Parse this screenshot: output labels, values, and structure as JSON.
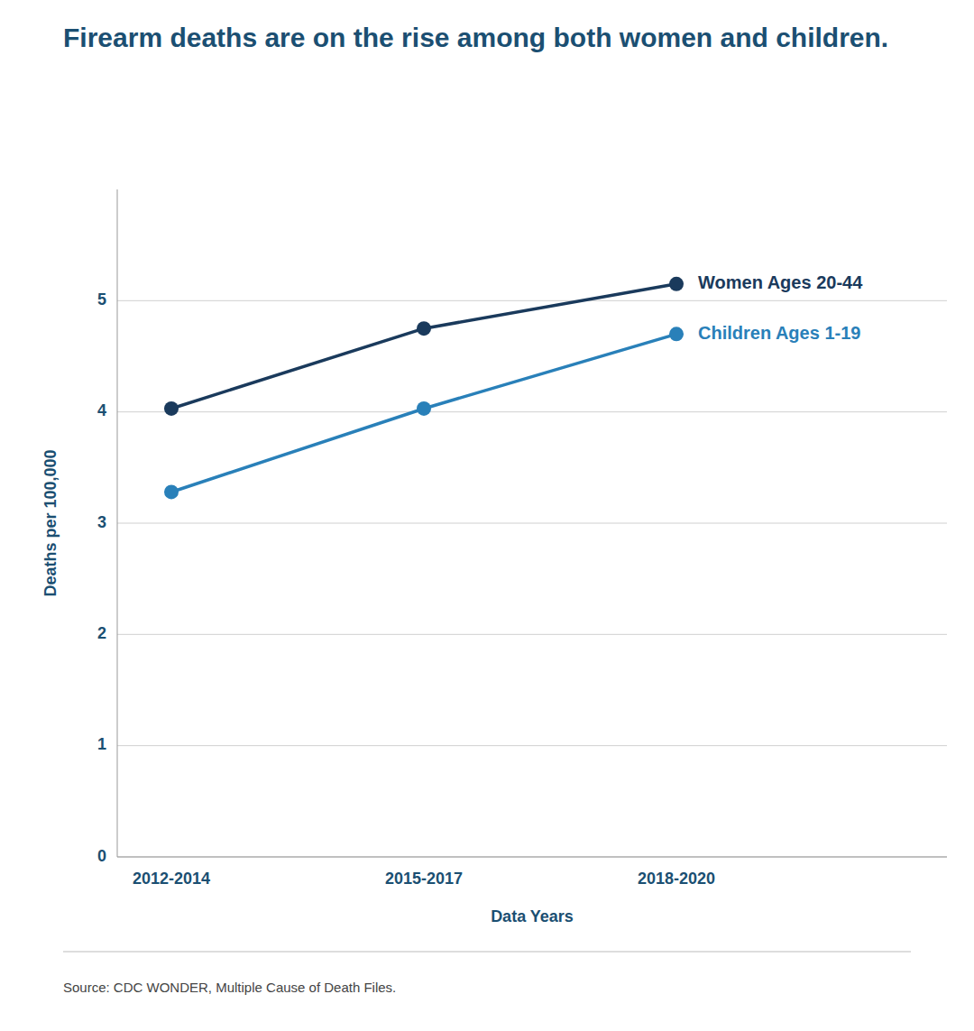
{
  "chart_data": {
    "type": "line",
    "title": "Firearm deaths are on the rise among both women and children.",
    "xlabel": "Data Years",
    "ylabel": "Deaths per 100,000",
    "source": "Source: CDC WONDER, Multiple Cause of Death Files.",
    "categories": [
      "2012-2014",
      "2015-2017",
      "2018-2020"
    ],
    "series": [
      {
        "name": "Women Ages 20-44",
        "color": "#1a3a5c",
        "marker": "circle",
        "values": [
          4.03,
          4.75,
          5.15
        ]
      },
      {
        "name": "Children Ages 1-19",
        "color": "#2980b9",
        "marker": "circle",
        "values": [
          3.28,
          4.03,
          4.7
        ]
      }
    ],
    "ylim": [
      0,
      6.0
    ],
    "yticks": [
      0,
      1,
      2,
      3,
      4,
      5
    ],
    "grid": true
  }
}
